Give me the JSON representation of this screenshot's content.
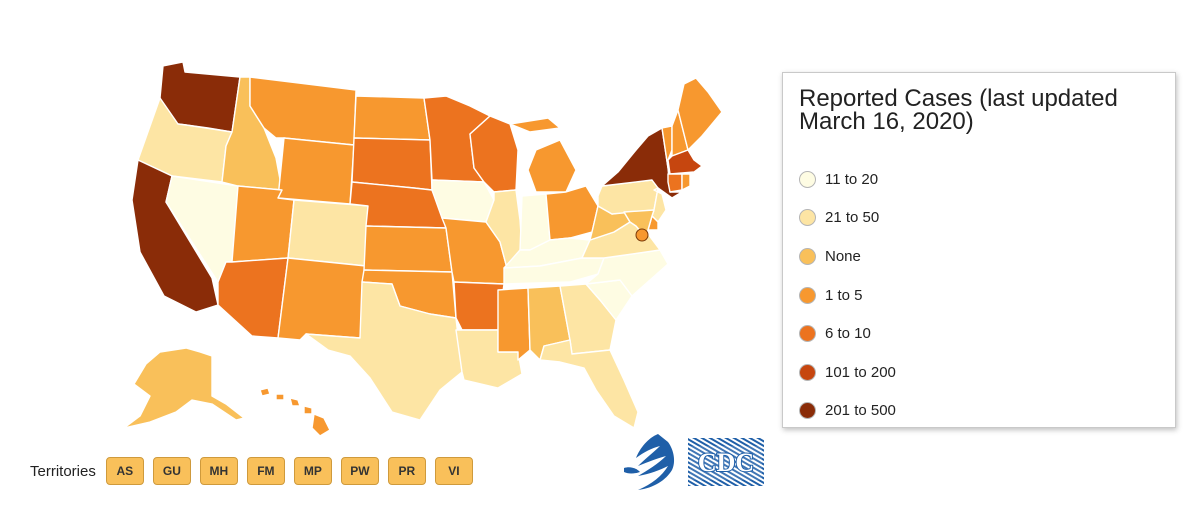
{
  "legend": {
    "title": "Reported Cases (last updated March 16, 2020)",
    "items": [
      {
        "label": "11 to 20",
        "color": "#fefce3"
      },
      {
        "label": "21 to 50",
        "color": "#fde5a4"
      },
      {
        "label": "None",
        "color": "#f9c05a"
      },
      {
        "label": "1 to 5",
        "color": "#f7982f"
      },
      {
        "label": "6 to 10",
        "color": "#ec731f"
      },
      {
        "label": "101 to 200",
        "color": "#c6460f"
      },
      {
        "label": "201 to 500",
        "color": "#8a2c08"
      }
    ]
  },
  "states": {
    "WA": "201 to 500",
    "OR": "21 to 50",
    "CA": "201 to 500",
    "NV": "11 to 20",
    "ID": "None",
    "MT": "1 to 5",
    "WY": "1 to 5",
    "UT": "1 to 5",
    "AZ": "6 to 10",
    "CO": "21 to 50",
    "NM": "1 to 5",
    "ND": "1 to 5",
    "SD": "6 to 10",
    "NE": "6 to 10",
    "KS": "1 to 5",
    "OK": "1 to 5",
    "TX": "21 to 50",
    "MN": "6 to 10",
    "IA": "11 to 20",
    "MO": "1 to 5",
    "AR": "6 to 10",
    "LA": "21 to 50",
    "WI": "6 to 10",
    "IL": "21 to 50",
    "MI": "1 to 5",
    "IN": "11 to 20",
    "OH": "1 to 5",
    "KY": "11 to 20",
    "TN": "11 to 20",
    "MS": "1 to 5",
    "AL": "None",
    "GA": "21 to 50",
    "FL": "21 to 50",
    "SC": "11 to 20",
    "NC": "11 to 20",
    "VA": "21 to 50",
    "WV": "None",
    "PA": "21 to 50",
    "NY": "201 to 500",
    "NJ": "21 to 50",
    "DE": "1 to 5",
    "MD": "None",
    "DC": "1 to 5",
    "VT": "1 to 5",
    "NH": "1 to 5",
    "ME": "1 to 5",
    "MA": "101 to 200",
    "CT": "6 to 10",
    "RI": "1 to 5",
    "AK": "None",
    "HI": "1 to 5"
  },
  "territories": {
    "label": "Territories",
    "buttons": [
      "AS",
      "GU",
      "MH",
      "FM",
      "MP",
      "PW",
      "PR",
      "VI"
    ]
  },
  "logos": {
    "cdc_text": "CDC",
    "hhs": "hhs-eagle-icon",
    "cdc_color": "#1f5fa8"
  }
}
